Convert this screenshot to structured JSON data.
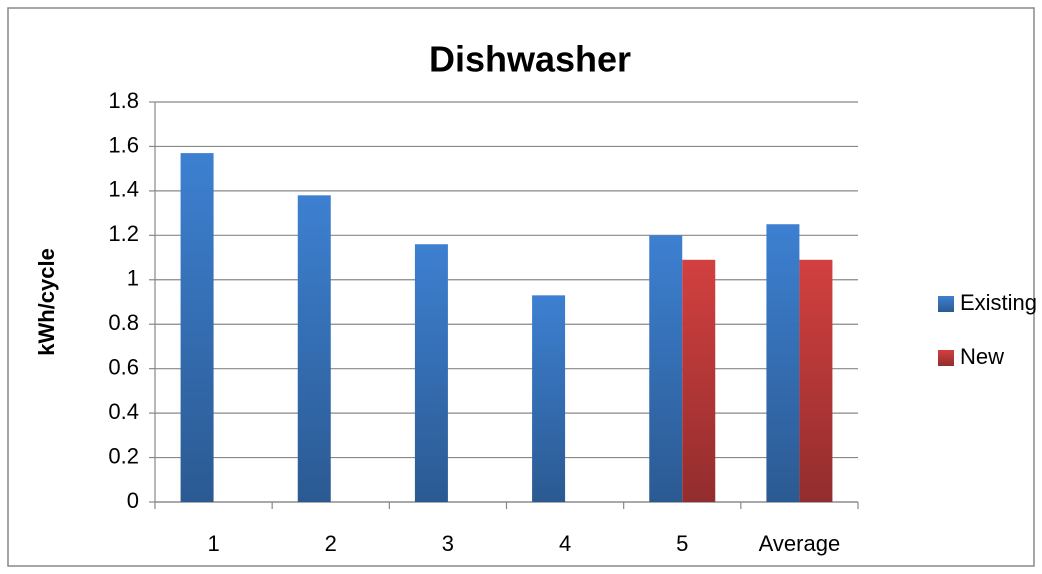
{
  "chart_data": {
    "type": "bar",
    "title": "Dishwasher",
    "y_label": "kWh/cycle",
    "categories": [
      "1",
      "2",
      "3",
      "4",
      "5",
      "Average"
    ],
    "series": [
      {
        "name": "Existing",
        "color": "#3d80d1",
        "values": [
          1.57,
          1.38,
          1.16,
          0.93,
          1.2,
          1.25
        ]
      },
      {
        "name": "New",
        "color": "#d24040",
        "values": [
          null,
          null,
          null,
          null,
          1.09,
          1.09
        ]
      }
    ],
    "ylim": [
      0,
      1.8
    ],
    "yticks": [
      0,
      0.2,
      0.4,
      0.6,
      0.8,
      1,
      1.2,
      1.4,
      1.6,
      1.8
    ],
    "grid": true,
    "legend": "right"
  }
}
